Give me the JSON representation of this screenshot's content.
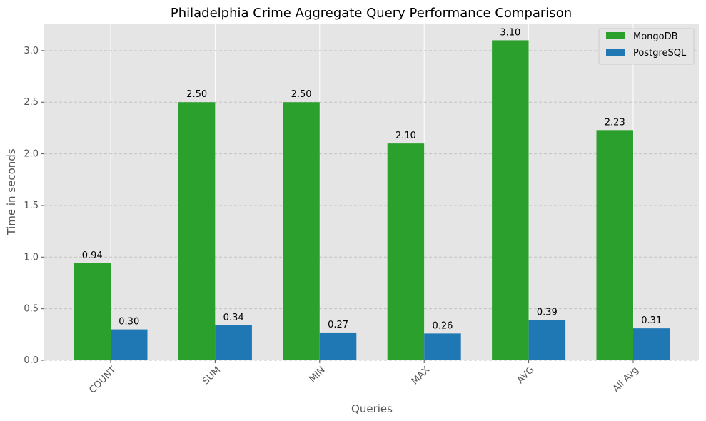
{
  "chart_data": {
    "type": "bar",
    "title": "Philadelphia Crime Aggregate Query Performance Comparison",
    "xlabel": "Queries",
    "ylabel": "Time in seconds",
    "categories": [
      "COUNT",
      "SUM",
      "MIN",
      "MAX",
      "AVG",
      "All Avg"
    ],
    "series": [
      {
        "name": "MongoDB",
        "values": [
          0.94,
          2.5,
          2.5,
          2.1,
          3.1,
          2.23
        ],
        "labels": [
          "0.94",
          "2.50",
          "2.50",
          "2.10",
          "3.10",
          "2.23"
        ],
        "color": "#2ca02c"
      },
      {
        "name": "PostgreSQL",
        "values": [
          0.3,
          0.34,
          0.27,
          0.26,
          0.39,
          0.31
        ],
        "labels": [
          "0.30",
          "0.34",
          "0.27",
          "0.26",
          "0.39",
          "0.31"
        ],
        "color": "#1f77b4"
      }
    ],
    "ylim": [
      0,
      3.255
    ],
    "yticks": [
      "0.0",
      "0.5",
      "1.0",
      "1.5",
      "2.0",
      "2.5",
      "3.0"
    ],
    "grid": "y dashed, x solid at categories",
    "legend_position": "top-right",
    "background": "#e5e5e5",
    "xtick_rotation_degrees": 45
  }
}
